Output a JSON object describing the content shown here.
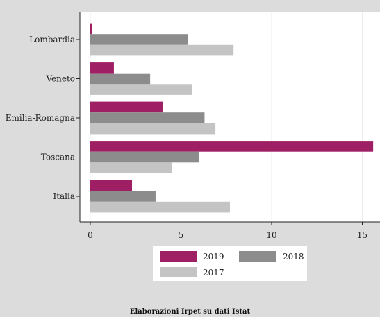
{
  "chart_data": {
    "type": "bar",
    "orientation": "horizontal",
    "categories": [
      "Lombardia",
      "Veneto",
      "Emilia-Romagna",
      "Toscana",
      "Italia"
    ],
    "series": [
      {
        "name": "2019",
        "color": "#9e1f63",
        "values": [
          0.1,
          1.3,
          4.0,
          15.6,
          2.3
        ]
      },
      {
        "name": "2018",
        "color": "#8c8c8c",
        "values": [
          5.4,
          3.3,
          6.3,
          6.0,
          3.6
        ]
      },
      {
        "name": "2017",
        "color": "#c4c4c4",
        "values": [
          7.9,
          5.6,
          6.9,
          4.5,
          7.7
        ]
      }
    ],
    "xlim": [
      -0.5,
      15.9
    ],
    "xticks": [
      0,
      5,
      10,
      15
    ],
    "grid": true,
    "legend_position": "bottom"
  },
  "source_note": "Elaborazioni Irpet su dati Istat"
}
